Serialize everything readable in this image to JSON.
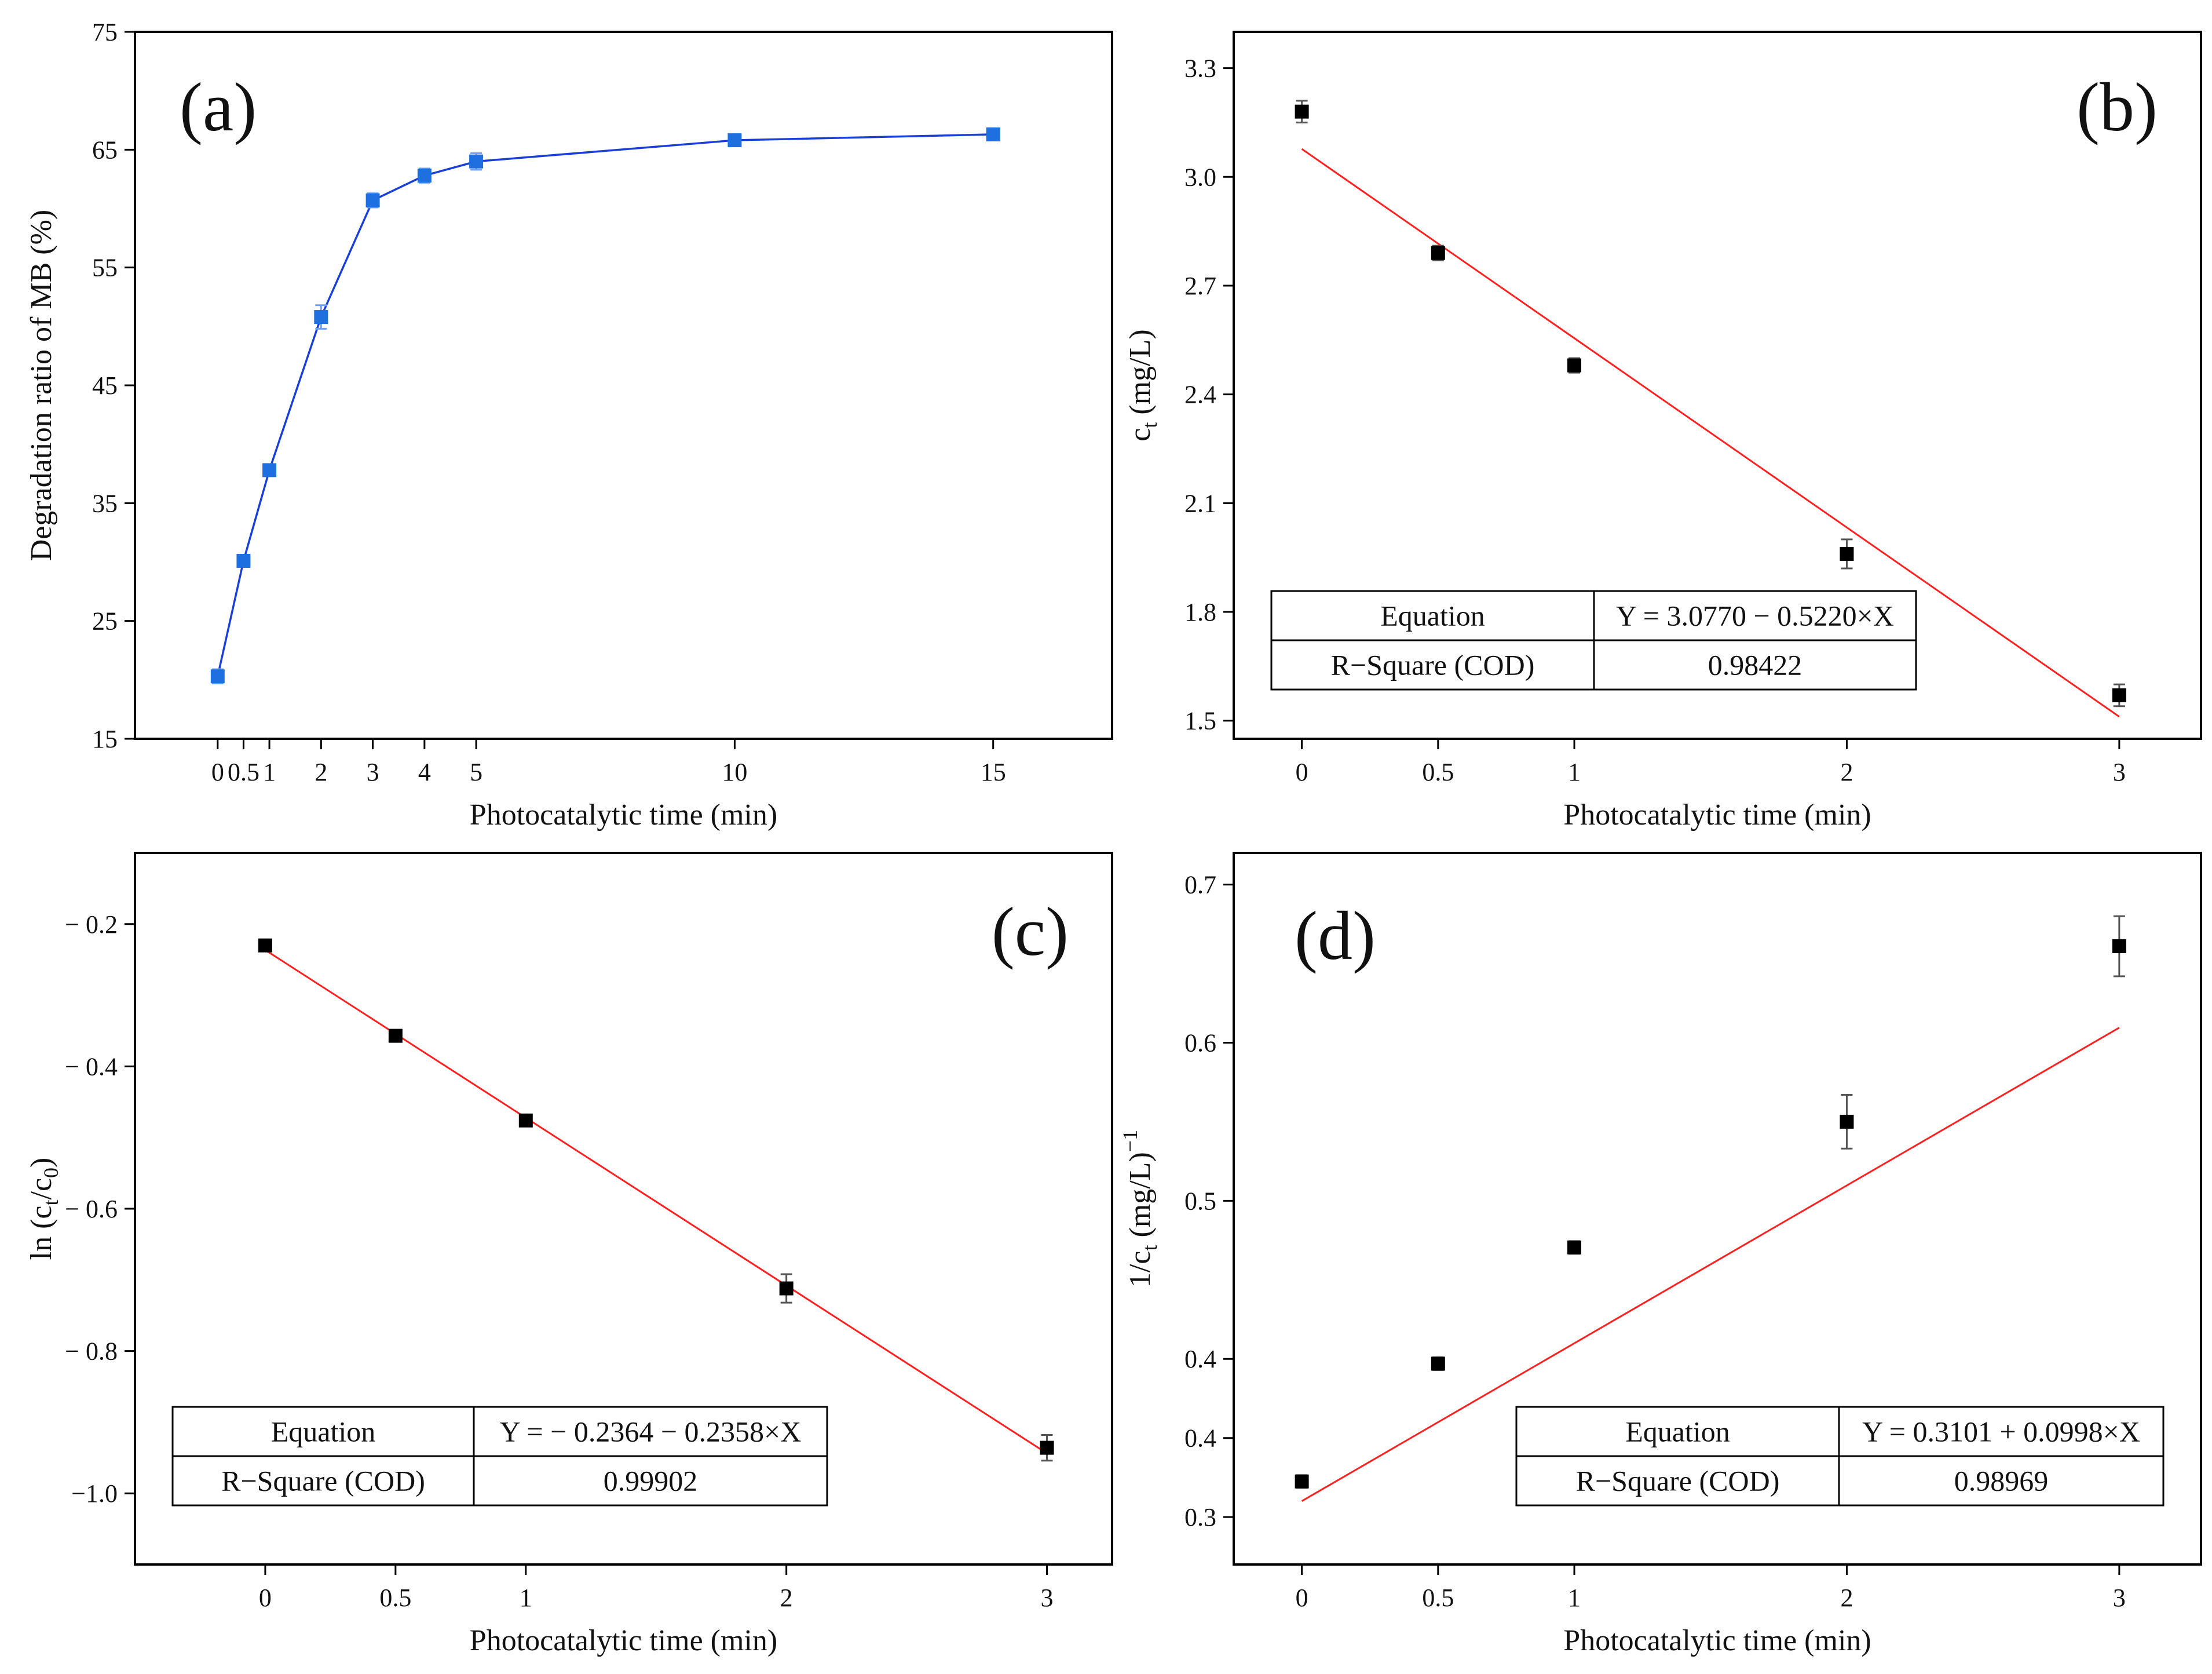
{
  "figure": {
    "title": ""
  },
  "chart_data": [
    {
      "id": "a",
      "type": "line",
      "panel_label": "(a)",
      "xlabel": "Photocatalytic time (min)",
      "ylabel": "Degradation ratio of MB (%)",
      "xlim": [
        -1.6,
        17.3
      ],
      "ylim": [
        15,
        75
      ],
      "x_ticks": [
        0,
        0.5,
        1,
        2,
        3,
        4,
        5,
        10,
        15
      ],
      "x_tick_labels": [
        "0",
        "0.5",
        "1",
        "2",
        "3",
        "4",
        "5",
        "10",
        "15"
      ],
      "y_ticks": [
        15,
        25,
        35,
        45,
        55,
        65,
        75
      ],
      "y_tick_labels": [
        "15",
        "25",
        "35",
        "45",
        "55",
        "65",
        "75"
      ],
      "series": [
        {
          "name": "Degradation ratio",
          "color": "#1a3fd6",
          "marker_color": "#1e6fe0",
          "x": [
            0,
            0.5,
            1,
            2,
            3,
            4,
            5,
            10,
            15
          ],
          "y": [
            20.3,
            30.1,
            37.8,
            50.8,
            60.7,
            62.8,
            64.0,
            65.8,
            66.3
          ],
          "err": [
            0.6,
            0.5,
            0.5,
            1.0,
            0.6,
            0.6,
            0.7,
            0.3,
            0.3
          ]
        }
      ]
    },
    {
      "id": "b",
      "type": "scatter",
      "panel_label": "(b)",
      "xlabel": "Photocatalytic time (min)",
      "ylabel": "c",
      "ylabel_sub": "t",
      "ylabel_rest": " (mg/L)",
      "xlim": [
        -0.25,
        3.3
      ],
      "ylim": [
        1.45,
        3.4
      ],
      "x_ticks": [
        0,
        0.5,
        1,
        2,
        3
      ],
      "x_tick_labels": [
        "0",
        "0.5",
        "1",
        "2",
        "3"
      ],
      "y_ticks": [
        1.5,
        1.8,
        2.1,
        2.4,
        2.7,
        3.0,
        3.3
      ],
      "y_tick_labels": [
        "1.5",
        "1.8",
        "2.1",
        "2.4",
        "2.7",
        "3.0",
        "3.3"
      ],
      "points": {
        "x": [
          0,
          0.5,
          1,
          2,
          3
        ],
        "y": [
          3.18,
          2.79,
          2.48,
          1.96,
          1.57
        ],
        "err": [
          0.03,
          0.02,
          0.02,
          0.04,
          0.03
        ]
      },
      "fit": {
        "intercept": 3.077,
        "slope": -0.522,
        "x_range": [
          0,
          3
        ],
        "color": "#ff2020"
      },
      "table": {
        "equation_label": "Equation",
        "equation": "Y = 3.0770 − 0.5220×X",
        "r2_label": "R−Square (COD)",
        "r2": "0.98422"
      }
    },
    {
      "id": "c",
      "type": "scatter",
      "panel_label": "(c)",
      "xlabel": "Photocatalytic time (min)",
      "ylabel": "ln (c",
      "ylabel_sub": "t",
      "ylabel_mid": "/c",
      "ylabel_sub2": "0",
      "ylabel_rest": ")",
      "xlim": [
        -0.5,
        3.25
      ],
      "ylim": [
        -1.1,
        -0.1
      ],
      "x_ticks": [
        0,
        0.5,
        1,
        2,
        3
      ],
      "x_tick_labels": [
        "0",
        "0.5",
        "1",
        "2",
        "3"
      ],
      "y_ticks": [
        -1.0,
        -0.8,
        -0.6,
        -0.4,
        -0.2
      ],
      "y_tick_labels": [
        "−1.0",
        "− 0.8",
        "− 0.6",
        "− 0.4",
        "− 0.2"
      ],
      "points": {
        "x": [
          0,
          0.5,
          1,
          2,
          3
        ],
        "y": [
          -0.23,
          -0.357,
          -0.476,
          -0.712,
          -0.936
        ],
        "err": [
          0.005,
          0.006,
          0.008,
          0.02,
          0.018
        ]
      },
      "fit": {
        "intercept": -0.2364,
        "slope": -0.2358,
        "x_range": [
          0,
          3
        ],
        "color": "#ff2020"
      },
      "table": {
        "equation_label": "Equation",
        "equation": "Y = − 0.2364 − 0.2358×X",
        "r2_label": "R−Square (COD)",
        "r2": "0.99902"
      }
    },
    {
      "id": "d",
      "type": "scatter",
      "panel_label": "(d)",
      "xlabel": "Photocatalytic time (min)",
      "ylabel": "1/c",
      "ylabel_sub": "t",
      "ylabel_rest": " (mg/L)",
      "ylabel_sup": "−1",
      "xlim": [
        -0.25,
        3.3
      ],
      "ylim": [
        0.27,
        0.72
      ],
      "x_ticks": [
        0,
        0.5,
        1,
        2,
        3
      ],
      "x_tick_labels": [
        "0",
        "0.5",
        "1",
        "2",
        "3"
      ],
      "y_ticks": [
        0.3,
        0.35,
        0.4,
        0.5,
        0.6,
        0.7
      ],
      "y_tick_labels": [
        "0.3",
        "0.4",
        "0.4",
        "0.5",
        "0.6",
        "0.7"
      ],
      "points": {
        "x": [
          0,
          0.5,
          1,
          2,
          3
        ],
        "y": [
          0.3225,
          0.397,
          0.4705,
          0.55,
          0.661
        ],
        "err": [
          0.004,
          0.004,
          0.004,
          0.017,
          0.019
        ]
      },
      "fit": {
        "intercept": 0.3101,
        "slope": 0.0998,
        "x_range": [
          0,
          3
        ],
        "color": "#ff2020"
      },
      "table": {
        "equation_label": "Equation",
        "equation": "Y = 0.3101 + 0.0998×X",
        "r2_label": "R−Square (COD)",
        "r2": "0.98969"
      }
    }
  ]
}
